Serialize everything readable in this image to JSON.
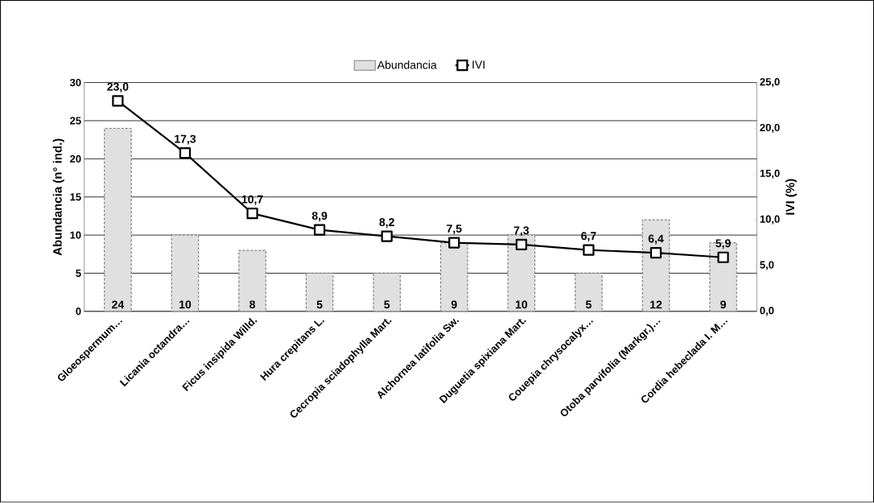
{
  "chart_data": {
    "type": "bar",
    "ylabel": "Abundancia (n° ind.)",
    "y2label": "IVI (%)",
    "categories": [
      "Gloeospermum…",
      "Licania octandra…",
      "Ficus insipida Willd.",
      "Hura crepitans L.",
      "Cecropia sciadophylla Mart.",
      "Alchornea latifolia Sw.",
      "Duguetia spixiana Mart.",
      "Couepia chrysocalyx…",
      "Otoba parvifolia (Markgr.)…",
      "Cordia hebeclada I. M…"
    ],
    "ylim": [
      0,
      30
    ],
    "yticks": [
      0,
      5,
      10,
      15,
      20,
      25,
      30
    ],
    "y2lim": [
      0,
      25
    ],
    "y2ticks": [
      {
        "value": 0,
        "label": "0,0"
      },
      {
        "value": 5,
        "label": "5,0"
      },
      {
        "value": 10,
        "label": "10,0"
      },
      {
        "value": 15,
        "label": "15,0"
      },
      {
        "value": 20,
        "label": "20,0"
      },
      {
        "value": 25,
        "label": "25,0"
      }
    ],
    "grid": "y",
    "legend": "top",
    "marker": "square",
    "series": [
      {
        "name": "Abundancia",
        "type": "bar",
        "color": "#e0e0e0",
        "values": [
          24,
          10,
          8,
          5,
          5,
          9,
          10,
          5,
          12,
          9
        ],
        "value_labels": [
          "24",
          "10",
          "8",
          "5",
          "5",
          "9",
          "10",
          "5",
          "12",
          "9"
        ]
      },
      {
        "name": "IVI",
        "type": "line",
        "axis": "y2",
        "color": "#000000",
        "line_style": "solid",
        "values": [
          23.0,
          17.3,
          10.7,
          8.9,
          8.2,
          7.5,
          7.3,
          6.7,
          6.4,
          5.9
        ],
        "value_labels": [
          "23,0",
          "17,3",
          "10,7",
          "8,9",
          "8,2",
          "7,5",
          "7,3",
          "6,7",
          "6,4",
          "5,9"
        ]
      }
    ]
  }
}
